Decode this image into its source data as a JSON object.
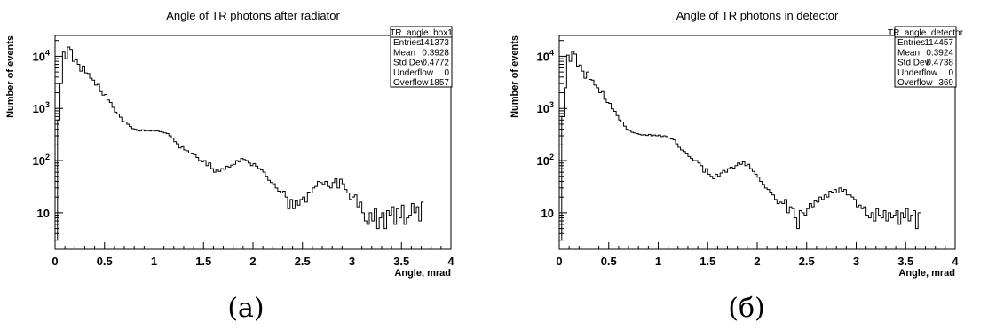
{
  "chart_data": [
    {
      "type": "histogram",
      "title": "Angle of TR photons after radiator",
      "xlabel": "Angle, mrad",
      "ylabel": "Number of events",
      "xlim": [
        0,
        4
      ],
      "ylim": [
        2,
        25000
      ],
      "yscale": "log",
      "x_ticks": [
        "0",
        "0.5",
        "1",
        "1.5",
        "2",
        "2.5",
        "3",
        "3.5",
        "4"
      ],
      "y_ticks": [
        {
          "value": 10,
          "base": "10",
          "exp": ""
        },
        {
          "value": 100,
          "base": "10",
          "exp": "2"
        },
        {
          "value": 1000,
          "base": "10",
          "exp": "3"
        },
        {
          "value": 10000,
          "base": "10",
          "exp": "4"
        }
      ],
      "stats_box": {
        "name": "TR_angle_box1",
        "rows": [
          {
            "label": "Entries",
            "value": "141373"
          },
          {
            "label": "Mean",
            "value": "0.3928"
          },
          {
            "label": "Std Dev",
            "value": "0.4772"
          },
          {
            "label": "Underflow",
            "value": "0"
          },
          {
            "label": "Overflow",
            "value": "1857"
          }
        ]
      },
      "bin_width": 0.025,
      "x_start": 0,
      "counts": [
        3,
        600,
        3000,
        12000,
        9000,
        15000,
        13500,
        8000,
        8500,
        7000,
        5200,
        6500,
        4800,
        4700,
        3800,
        3500,
        2800,
        2900,
        2100,
        1800,
        1850,
        1450,
        1300,
        1050,
        850,
        780,
        680,
        560,
        550,
        500,
        450,
        410,
        400,
        380,
        370,
        390,
        370,
        380,
        370,
        380,
        370,
        370,
        360,
        350,
        340,
        330,
        300,
        270,
        230,
        210,
        175,
        185,
        160,
        155,
        140,
        135,
        130,
        115,
        100,
        95,
        100,
        80,
        90,
        70,
        60,
        68,
        62,
        70,
        68,
        78,
        75,
        82,
        85,
        100,
        95,
        110,
        105,
        100,
        90,
        80,
        88,
        78,
        70,
        66,
        60,
        50,
        42,
        38,
        36,
        30,
        26,
        24,
        26,
        20,
        12,
        18,
        12,
        17,
        14,
        18,
        20,
        16,
        25,
        24,
        30,
        32,
        40,
        38,
        35,
        40,
        32,
        30,
        38,
        45,
        30,
        44,
        36,
        28,
        24,
        18,
        20,
        22,
        13,
        16,
        10,
        7,
        6,
        10,
        7,
        12,
        5,
        8,
        10,
        5,
        11,
        9,
        13,
        6,
        12,
        8,
        14,
        6,
        8,
        9,
        15,
        10,
        13,
        7,
        16
      ]
    },
    {
      "type": "histogram",
      "title": "Angle of TR photons in detector",
      "xlabel": "Angle, mrad",
      "ylabel": "Number of events",
      "xlim": [
        0,
        4
      ],
      "ylim": [
        2,
        25000
      ],
      "yscale": "log",
      "x_ticks": [
        "0",
        "0.5",
        "1",
        "1.5",
        "2",
        "2.5",
        "3",
        "3.5",
        "4"
      ],
      "y_ticks": [
        {
          "value": 10,
          "base": "10",
          "exp": ""
        },
        {
          "value": 100,
          "base": "10",
          "exp": "2"
        },
        {
          "value": 1000,
          "base": "10",
          "exp": "3"
        },
        {
          "value": 10000,
          "base": "10",
          "exp": "4"
        }
      ],
      "stats_box": {
        "name": "TR_angle_detector",
        "rows": [
          {
            "label": "Entries",
            "value": "114457"
          },
          {
            "label": "Mean",
            "value": "0.3924"
          },
          {
            "label": "Std Dev",
            "value": "0.4738"
          },
          {
            "label": "Underflow",
            "value": "0"
          },
          {
            "label": "Overflow",
            "value": "369"
          }
        ]
      },
      "bin_width": 0.025,
      "x_start": 0,
      "counts": [
        3,
        700,
        2500,
        10500,
        8000,
        12500,
        11000,
        6500,
        6800,
        5200,
        3800,
        5000,
        3600,
        3500,
        2800,
        2500,
        2000,
        2100,
        1500,
        1300,
        1250,
        980,
        880,
        730,
        600,
        550,
        460,
        400,
        380,
        350,
        340,
        330,
        320,
        310,
        315,
        305,
        320,
        300,
        310,
        300,
        310,
        290,
        300,
        290,
        270,
        260,
        250,
        210,
        180,
        160,
        150,
        135,
        120,
        110,
        100,
        100,
        90,
        80,
        60,
        70,
        55,
        50,
        45,
        55,
        50,
        58,
        65,
        60,
        70,
        75,
        72,
        80,
        90,
        85,
        95,
        80,
        85,
        70,
        62,
        55,
        48,
        40,
        35,
        30,
        28,
        25,
        22,
        18,
        15,
        16,
        15,
        18,
        10,
        13,
        12,
        8,
        5,
        11,
        10,
        9,
        12,
        15,
        13,
        17,
        16,
        20,
        18,
        22,
        20,
        26,
        25,
        28,
        24,
        30,
        26,
        28,
        22,
        22,
        20,
        18,
        13,
        14,
        12,
        13,
        9,
        8,
        10,
        7,
        12,
        9,
        8,
        11,
        7,
        10,
        8,
        9,
        11,
        6,
        10,
        8,
        12,
        7,
        9,
        11,
        5,
        10
      ]
    }
  ],
  "captions": [
    "(a)",
    "(б)"
  ]
}
